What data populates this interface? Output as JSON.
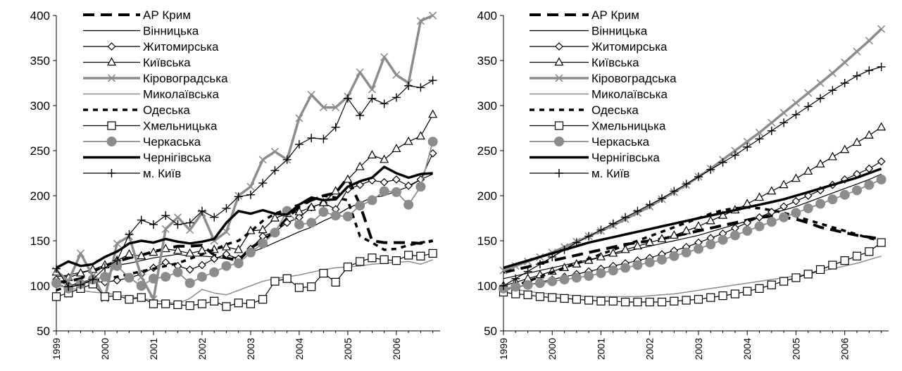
{
  "chart_data": [
    {
      "type": "line",
      "title": "",
      "xlabel": "",
      "ylabel": "",
      "ylim": [
        50,
        400
      ],
      "xlim": [
        1999,
        2006.9
      ],
      "x_ticks": [
        "1999",
        "2000",
        "2001",
        "2002",
        "2003",
        "2004",
        "2005",
        "2006"
      ],
      "y_ticks": [
        "50",
        "100",
        "150",
        "200",
        "250",
        "300",
        "350",
        "400"
      ],
      "grid": false,
      "legend_position": "top-left",
      "x": [
        1999.0,
        1999.25,
        1999.5,
        1999.75,
        2000.0,
        2000.25,
        2000.5,
        2000.75,
        2001.0,
        2001.25,
        2001.5,
        2001.75,
        2002.0,
        2002.25,
        2002.5,
        2002.75,
        2003.0,
        2003.25,
        2003.5,
        2003.75,
        2004.0,
        2004.25,
        2004.5,
        2004.75,
        2005.0,
        2005.25,
        2005.5,
        2005.75,
        2006.0,
        2006.25,
        2006.5,
        2006.75
      ],
      "series": [
        {
          "name": "АР Крим",
          "style": "dash-thick",
          "values": [
            104,
            105,
            108,
            116,
            122,
            127,
            131,
            134,
            138,
            141,
            144,
            144,
            145,
            134,
            131,
            128,
            142,
            150,
            160,
            175,
            188,
            195,
            200,
            203,
            220,
            190,
            150,
            148,
            148,
            148,
            147,
            150
          ]
        },
        {
          "name": "Вінницька",
          "style": "solid-thin",
          "values": [
            110,
            112,
            115,
            118,
            120,
            123,
            125,
            128,
            131,
            133,
            135,
            133,
            133,
            132,
            130,
            132,
            137,
            142,
            148,
            154,
            160,
            165,
            172,
            178,
            186,
            192,
            198,
            200,
            205,
            210,
            218,
            224
          ]
        },
        {
          "name": "Житомирська",
          "style": "diamond",
          "values": [
            107,
            100,
            103,
            105,
            104,
            106,
            109,
            113,
            120,
            126,
            122,
            118,
            123,
            130,
            135,
            130,
            141,
            155,
            160,
            170,
            176,
            187,
            192,
            185,
            207,
            212,
            217,
            215,
            218,
            211,
            218,
            247
          ]
        },
        {
          "name": "Київська",
          "style": "triangle",
          "values": [
            115,
            109,
            114,
            118,
            123,
            128,
            135,
            133,
            137,
            141,
            139,
            136,
            139,
            140,
            143,
            140,
            161,
            162,
            175,
            180,
            182,
            187,
            192,
            205,
            218,
            232,
            245,
            240,
            252,
            260,
            266,
            290
          ]
        },
        {
          "name": "Кіровоградська",
          "style": "gray-x-thick",
          "values": [
            117,
            105,
            136,
            111,
            86,
            147,
            155,
            110,
            85,
            163,
            176,
            162,
            181,
            150,
            160,
            200,
            210,
            240,
            249,
            240,
            286,
            312,
            298,
            298,
            310,
            337,
            318,
            354,
            334,
            325,
            394,
            400
          ]
        },
        {
          "name": "Миколаївська",
          "style": "gray-thin",
          "values": [
            100,
            98,
            95,
            93,
            92,
            90,
            88,
            86,
            84,
            82,
            80,
            86,
            96,
            92,
            90,
            95,
            100,
            105,
            108,
            110,
            112,
            115,
            118,
            120,
            121,
            122,
            124,
            125,
            126,
            127,
            124,
            129
          ]
        },
        {
          "name": "Одеська",
          "style": "dot-thick",
          "values": [
            95,
            100,
            103,
            106,
            108,
            110,
            113,
            116,
            119,
            122,
            125,
            130,
            135,
            140,
            146,
            150,
            160,
            172,
            180,
            185,
            190,
            195,
            200,
            198,
            195,
            155,
            148,
            140,
            141,
            145,
            148,
            150
          ]
        },
        {
          "name": "Хмельницька",
          "style": "square",
          "values": [
            88,
            92,
            97,
            102,
            88,
            89,
            85,
            87,
            80,
            80,
            79,
            78,
            80,
            83,
            77,
            81,
            80,
            85,
            105,
            108,
            98,
            99,
            114,
            104,
            121,
            127,
            131,
            129,
            128,
            134,
            133,
            136
          ]
        },
        {
          "name": "Черкаська",
          "style": "gray-circle",
          "values": [
            103,
            97,
            102,
            107,
            110,
            122,
            109,
            100,
            108,
            110,
            115,
            103,
            110,
            115,
            122,
            125,
            137,
            147,
            159,
            183,
            168,
            170,
            182,
            178,
            177,
            189,
            195,
            205,
            204,
            190,
            210,
            260
          ]
        },
        {
          "name": "Чернігівська",
          "style": "solid-thick",
          "values": [
            120,
            127,
            122,
            124,
            132,
            138,
            147,
            150,
            148,
            152,
            149,
            147,
            149,
            152,
            170,
            183,
            180,
            184,
            180,
            179,
            190,
            198,
            195,
            196,
            210,
            216,
            220,
            232,
            225,
            220,
            224,
            225
          ]
        },
        {
          "name": "м. Київ",
          "style": "cross",
          "values": [
            119,
            99,
            101,
            107,
            120,
            128,
            157,
            173,
            168,
            178,
            168,
            170,
            183,
            176,
            186,
            199,
            201,
            214,
            228,
            240,
            257,
            264,
            263,
            276,
            308,
            289,
            308,
            302,
            309,
            322,
            320,
            328
          ]
        }
      ]
    },
    {
      "type": "line",
      "title": "",
      "xlabel": "",
      "ylabel": "",
      "ylim": [
        50,
        400
      ],
      "xlim": [
        1999,
        2006.9
      ],
      "x_ticks": [
        "1999",
        "2000",
        "2001",
        "2002",
        "2003",
        "2004",
        "2005",
        "2006"
      ],
      "y_ticks": [
        "50",
        "100",
        "150",
        "200",
        "250",
        "300",
        "350",
        "400"
      ],
      "grid": false,
      "legend_position": "top-left",
      "x": [
        1999.0,
        1999.25,
        1999.5,
        1999.75,
        2000.0,
        2000.25,
        2000.5,
        2000.75,
        2001.0,
        2001.25,
        2001.5,
        2001.75,
        2002.0,
        2002.25,
        2002.5,
        2002.75,
        2003.0,
        2003.25,
        2003.5,
        2003.75,
        2004.0,
        2004.25,
        2004.5,
        2004.75,
        2005.0,
        2005.25,
        2005.5,
        2005.75,
        2006.0,
        2006.25,
        2006.5,
        2006.75
      ],
      "series": [
        {
          "name": "АР Крим",
          "style": "dash-thick",
          "values": [
            115,
            118,
            121,
            125,
            128,
            131,
            134,
            137,
            140,
            143,
            146,
            148,
            150,
            152,
            155,
            158,
            161,
            164,
            167,
            170,
            173,
            176,
            177,
            176,
            174,
            170,
            165,
            162,
            159,
            156,
            154,
            152
          ]
        },
        {
          "name": "Вінницька",
          "style": "solid-thin",
          "values": [
            108,
            111,
            114,
            117,
            120,
            123,
            126,
            129,
            132,
            135,
            138,
            141,
            144,
            147,
            150,
            153,
            156,
            160,
            164,
            168,
            172,
            176,
            180,
            184,
            188,
            193,
            198,
            203,
            208,
            213,
            218,
            224
          ]
        },
        {
          "name": "Житомирська",
          "style": "diamond",
          "values": [
            95,
            98,
            101,
            104,
            107,
            110,
            113,
            116,
            119,
            122,
            125,
            128,
            131,
            135,
            139,
            143,
            148,
            153,
            158,
            164,
            170,
            176,
            182,
            188,
            194,
            200,
            206,
            212,
            218,
            224,
            230,
            238
          ]
        },
        {
          "name": "Київська",
          "style": "triangle",
          "values": [
            100,
            104,
            108,
            112,
            116,
            120,
            124,
            128,
            132,
            136,
            140,
            144,
            148,
            152,
            156,
            161,
            166,
            172,
            178,
            184,
            191,
            198,
            205,
            212,
            219,
            227,
            235,
            243,
            251,
            259,
            267,
            276
          ]
        },
        {
          "name": "Кіровоградська",
          "style": "gray-x-thick",
          "values": [
            117,
            122,
            127,
            132,
            137,
            143,
            149,
            155,
            161,
            167,
            174,
            181,
            188,
            196,
            204,
            212,
            221,
            230,
            240,
            250,
            260,
            270,
            281,
            292,
            303,
            314,
            325,
            336,
            348,
            360,
            372,
            385
          ]
        },
        {
          "name": "Миколаївська",
          "style": "gray-thin",
          "values": [
            98,
            96,
            94,
            92,
            91,
            90,
            89,
            88,
            88,
            88,
            88,
            88,
            89,
            90,
            91,
            93,
            95,
            97,
            99,
            101,
            103,
            105,
            107,
            109,
            111,
            113,
            116,
            119,
            122,
            125,
            129,
            133
          ]
        },
        {
          "name": "Одеська",
          "style": "dot-thick",
          "values": [
            95,
            100,
            105,
            110,
            115,
            120,
            125,
            130,
            135,
            140,
            145,
            150,
            155,
            160,
            165,
            170,
            175,
            180,
            184,
            186,
            187,
            186,
            184,
            181,
            177,
            173,
            169,
            165,
            161,
            157,
            153,
            150
          ]
        },
        {
          "name": "Хмельницька",
          "style": "square",
          "values": [
            93,
            91,
            90,
            88,
            87,
            86,
            85,
            84,
            83,
            83,
            82,
            82,
            82,
            82,
            83,
            84,
            85,
            87,
            89,
            91,
            94,
            97,
            101,
            105,
            109,
            113,
            118,
            123,
            128,
            133,
            138,
            148
          ]
        },
        {
          "name": "Черкаська",
          "style": "gray-circle",
          "values": [
            97,
            99,
            101,
            103,
            105,
            107,
            109,
            111,
            114,
            117,
            120,
            123,
            126,
            129,
            133,
            137,
            141,
            146,
            151,
            156,
            161,
            166,
            171,
            176,
            181,
            186,
            191,
            196,
            201,
            206,
            212,
            218
          ]
        },
        {
          "name": "Чернігівська",
          "style": "solid-thick",
          "values": [
            120,
            124,
            128,
            132,
            136,
            140,
            144,
            148,
            151,
            154,
            157,
            160,
            163,
            166,
            169,
            172,
            175,
            178,
            181,
            184,
            187,
            190,
            193,
            196,
            200,
            204,
            208,
            212,
            216,
            220,
            225,
            230
          ]
        },
        {
          "name": "м. Київ",
          "style": "cross",
          "values": [
            100,
            108,
            116,
            124,
            132,
            140,
            148,
            155,
            162,
            169,
            176,
            183,
            190,
            197,
            205,
            213,
            221,
            229,
            237,
            245,
            254,
            263,
            272,
            281,
            290,
            299,
            308,
            317,
            325,
            333,
            339,
            343
          ]
        }
      ]
    }
  ],
  "colors": {
    "black": "#000000",
    "gray": "#8c8c8c",
    "background": "#ffffff"
  }
}
